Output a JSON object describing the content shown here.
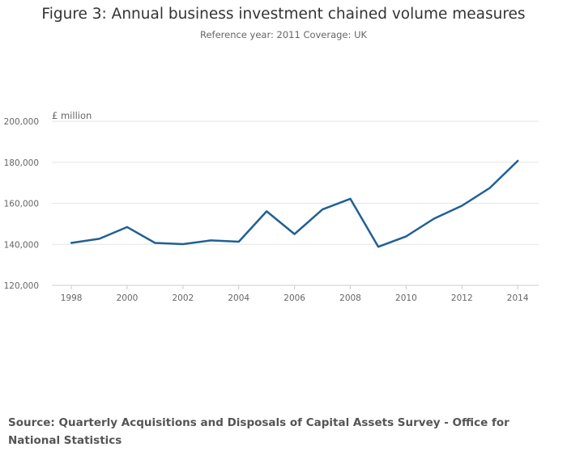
{
  "chart_data": {
    "type": "line",
    "title": "Figure 3: Annual business investment chained volume measures",
    "subtitle": "Reference year: 2011 Coverage: UK",
    "unit_label": "£ million",
    "xlabel": "",
    "ylabel": "£ million",
    "ylim": [
      120000,
      200000
    ],
    "y_ticks": [
      120000,
      140000,
      160000,
      180000,
      200000
    ],
    "y_tick_labels": [
      "120,000",
      "140,000",
      "160,000",
      "180,000",
      "200,000"
    ],
    "x_ticks": [
      "1998",
      "2000",
      "2002",
      "2004",
      "2006",
      "2008",
      "2010",
      "2012",
      "2014"
    ],
    "grid": true,
    "line_color": "#206095",
    "x": [
      1998,
      1999,
      2000,
      2001,
      2002,
      2003,
      2004,
      2005,
      2006,
      2007,
      2008,
      2009,
      2010,
      2011,
      2012,
      2013,
      2014
    ],
    "values": [
      140700,
      142700,
      148400,
      140700,
      140100,
      141900,
      141300,
      156100,
      145000,
      157000,
      162200,
      138800,
      143900,
      152500,
      158800,
      167500,
      180700
    ]
  },
  "source_text": "Source: Quarterly Acquisitions and Disposals of Capital Assets Survey - Office for National Statistics"
}
